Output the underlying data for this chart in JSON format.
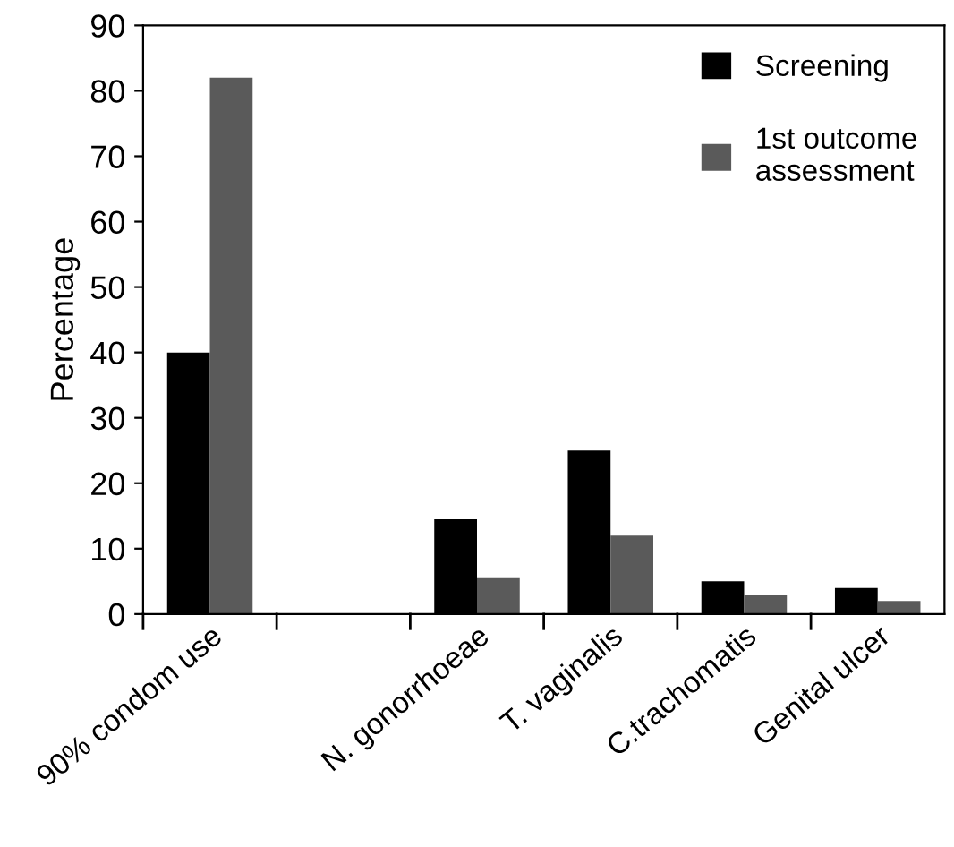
{
  "chart_data": {
    "type": "bar",
    "ylabel": "Percentage",
    "categories": [
      "90% condom use",
      null,
      "N. gonorrhoeae",
      "T. vaginalis",
      "C.trachomatis",
      "Genital ulcer"
    ],
    "series": [
      {
        "name": "Screening",
        "color": "#000000",
        "values": [
          40,
          null,
          14.5,
          25,
          5,
          4
        ]
      },
      {
        "name": "1st outcome\nassessment",
        "color": "#5a5a5a",
        "values": [
          82,
          null,
          5.5,
          12,
          3,
          2
        ]
      }
    ],
    "ylim": [
      0,
      90
    ],
    "yticks": [
      0,
      10,
      20,
      30,
      40,
      50,
      60,
      70,
      80,
      90
    ],
    "grid": false,
    "legend": "top right"
  }
}
